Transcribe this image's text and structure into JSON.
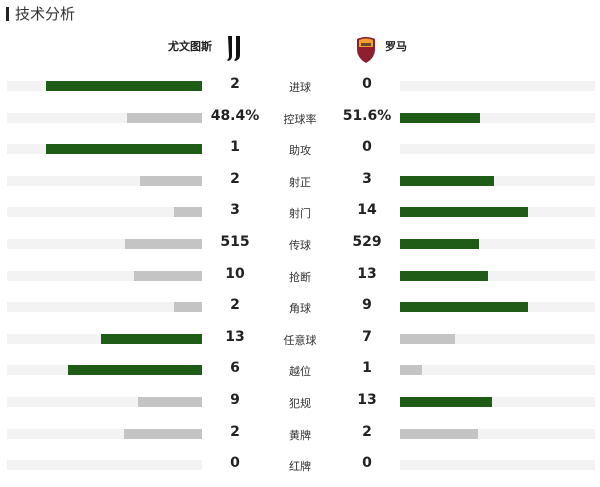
{
  "title": "技术分析",
  "home": {
    "name": "尤文图斯",
    "logo": "juventus-logo"
  },
  "away": {
    "name": "罗马",
    "logo": "as-roma-logo"
  },
  "colors": {
    "winner": "#1e5c18",
    "loser": "#c4c4c4",
    "track": "#f3f3f3"
  },
  "stats": [
    {
      "label": "进球",
      "home": "2",
      "away": "0"
    },
    {
      "label": "控球率",
      "home": "48.4%",
      "away": "51.6%"
    },
    {
      "label": "助攻",
      "home": "1",
      "away": "0"
    },
    {
      "label": "射正",
      "home": "2",
      "away": "3"
    },
    {
      "label": "射门",
      "home": "3",
      "away": "14"
    },
    {
      "label": "传球",
      "home": "515",
      "away": "529"
    },
    {
      "label": "抢断",
      "home": "10",
      "away": "13"
    },
    {
      "label": "角球",
      "home": "2",
      "away": "9"
    },
    {
      "label": "任意球",
      "home": "13",
      "away": "7"
    },
    {
      "label": "越位",
      "home": "6",
      "away": "1"
    },
    {
      "label": "犯规",
      "home": "9",
      "away": "13"
    },
    {
      "label": "黄牌",
      "home": "2",
      "away": "2"
    },
    {
      "label": "红牌",
      "home": "0",
      "away": "0"
    }
  ]
}
